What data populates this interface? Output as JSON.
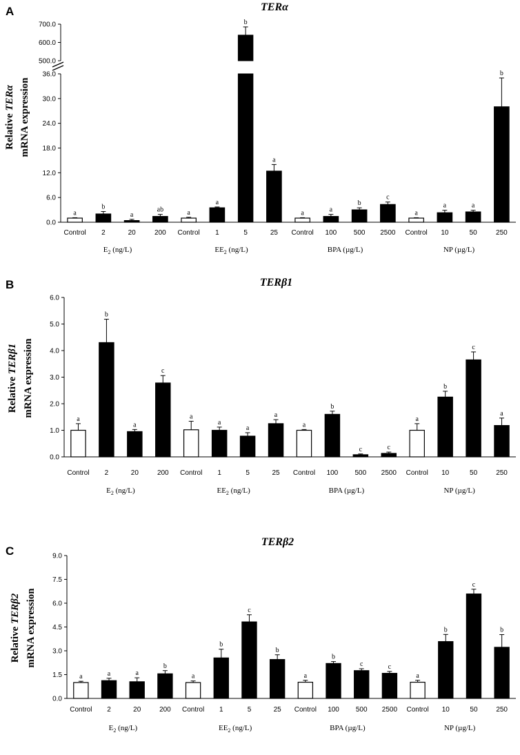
{
  "chart_data": [
    {
      "type": "bar",
      "panel_label": "A",
      "title": "TERα",
      "ylabel_line1_prefix": "Relative ",
      "ylabel_gene": "TERα",
      "ylabel_line2": "mRNA expression",
      "categories": [
        "Control",
        "2",
        "20",
        "200",
        "Control",
        "1",
        "5",
        "25",
        "Control",
        "100",
        "500",
        "2500",
        "Control",
        "10",
        "50",
        "250"
      ],
      "groups": [
        "E2 (ng/L)",
        "EE2  (ng/L)",
        "BPA  (µg/L)",
        "NP  (µg/L)"
      ],
      "group_labels": [
        {
          "main": "E",
          "sub": "2",
          "rest": " (ng/L)"
        },
        {
          "main": "EE",
          "sub": "2",
          "rest": "  (ng/L)"
        },
        {
          "main": "BPA",
          "sub": "",
          "rest": "  (µg/L)"
        },
        {
          "main": "NP",
          "sub": "",
          "rest": "  (µg/L)"
        }
      ],
      "values": [
        1.0,
        2.0,
        0.4,
        1.4,
        1.0,
        3.5,
        640,
        12.4,
        1.0,
        1.4,
        3.0,
        4.3,
        1.0,
        2.3,
        2.5,
        28.0
      ],
      "errors": [
        0.1,
        0.6,
        0.3,
        0.5,
        0.2,
        0.2,
        45,
        1.6,
        0.1,
        0.5,
        0.5,
        0.6,
        0.1,
        0.6,
        0.4,
        7.0
      ],
      "significance": [
        "a",
        "b",
        "a",
        "ab",
        "a",
        "a",
        "b",
        "a",
        "a",
        "a",
        "b",
        "c",
        "a",
        "a",
        "a",
        "b"
      ],
      "control_indices": [
        0,
        4,
        8,
        12
      ],
      "ylim": [
        0,
        36
      ],
      "yticks": [
        "0.0",
        "6.0",
        "12.0",
        "18.0",
        "24.0",
        "30.0",
        "36.0"
      ],
      "axis_break": true,
      "upper_ylim": [
        500,
        700
      ],
      "upper_yticks": [
        "500.0",
        "600.0",
        "700.0"
      ]
    },
    {
      "type": "bar",
      "panel_label": "B",
      "title": "TERβ1",
      "ylabel_line1_prefix": "Relative ",
      "ylabel_gene": "TERβ1",
      "ylabel_line2": "mRNA expression",
      "categories": [
        "Control",
        "2",
        "20",
        "200",
        "Control",
        "1",
        "5",
        "25",
        "Control",
        "100",
        "500",
        "2500",
        "Control",
        "10",
        "50",
        "250"
      ],
      "groups": [
        "E2 (ng/L)",
        "EE2  (ng/L)",
        "BPA  (µg/L)",
        "NP  (µg/L)"
      ],
      "group_labels": [
        {
          "main": "E",
          "sub": "2",
          "rest": " (ng/L)"
        },
        {
          "main": "EE",
          "sub": "2",
          "rest": "  (ng/L)"
        },
        {
          "main": "BPA",
          "sub": "",
          "rest": "  (µg/L)"
        },
        {
          "main": "NP",
          "sub": "",
          "rest": "  (µg/L)"
        }
      ],
      "values": [
        1.0,
        4.3,
        0.95,
        2.78,
        1.02,
        1.0,
        0.78,
        1.25,
        1.0,
        1.6,
        0.08,
        0.13,
        1.0,
        2.25,
        3.65,
        1.18
      ],
      "errors": [
        0.25,
        0.88,
        0.08,
        0.28,
        0.32,
        0.12,
        0.13,
        0.15,
        0.03,
        0.12,
        0.03,
        0.05,
        0.25,
        0.22,
        0.3,
        0.28
      ],
      "significance": [
        "a",
        "b",
        "a",
        "c",
        "a",
        "a",
        "a",
        "a",
        "a",
        "b",
        "c",
        "c",
        "a",
        "b",
        "c",
        "a"
      ],
      "control_indices": [
        0,
        4,
        8,
        12
      ],
      "ylim": [
        0,
        6
      ],
      "yticks": [
        "0.0",
        "1.0",
        "2.0",
        "3.0",
        "4.0",
        "5.0",
        "6.0"
      ]
    },
    {
      "type": "bar",
      "panel_label": "C",
      "title": "TERβ2",
      "ylabel_line1_prefix": "Relative ",
      "ylabel_gene": "TERβ2",
      "ylabel_line2": "mRNA expression",
      "categories": [
        "Control",
        "2",
        "20",
        "200",
        "Control",
        "1",
        "5",
        "25",
        "Control",
        "100",
        "500",
        "2500",
        "Control",
        "10",
        "50",
        "250"
      ],
      "groups": [
        "E2 (ng/L)",
        "EE2  (ng/L)",
        "BPA  (µg/L)",
        "NP  (µg/L)"
      ],
      "group_labels": [
        {
          "main": "E",
          "sub": "2",
          "rest": " (ng/L)"
        },
        {
          "main": "EE",
          "sub": "2",
          "rest": "  (ng/L)"
        },
        {
          "main": "BPA",
          "sub": "",
          "rest": "  (µg/L)"
        },
        {
          "main": "NP",
          "sub": "",
          "rest": "  (µg/L)"
        }
      ],
      "values": [
        1.0,
        1.12,
        1.05,
        1.55,
        1.0,
        2.55,
        4.82,
        2.45,
        1.02,
        2.2,
        1.75,
        1.58,
        1.02,
        3.58,
        6.58,
        3.22
      ],
      "errors": [
        0.08,
        0.15,
        0.25,
        0.2,
        0.1,
        0.55,
        0.45,
        0.3,
        0.12,
        0.12,
        0.12,
        0.12,
        0.12,
        0.45,
        0.3,
        0.8
      ],
      "significance": [
        "a",
        "a",
        "a",
        "b",
        "a",
        "b",
        "c",
        "b",
        "a",
        "b",
        "c",
        "c",
        "a",
        "b",
        "c",
        "b"
      ],
      "control_indices": [
        0,
        4,
        8,
        12
      ],
      "ylim": [
        0,
        9
      ],
      "yticks": [
        "0.0",
        "1.5",
        "3.0",
        "4.5",
        "6.0",
        "7.5",
        "9.0"
      ]
    }
  ]
}
